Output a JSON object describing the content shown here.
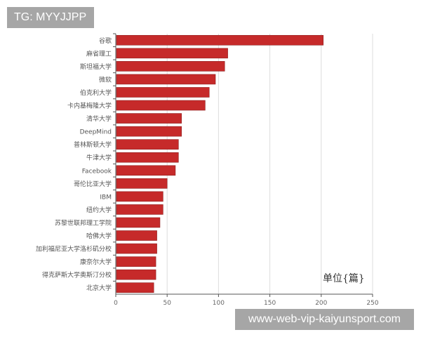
{
  "watermarks": {
    "top_left": "TG: MYYJJPP",
    "bottom_right": "www-web-vip-kaiyunsport.com"
  },
  "chart_data": {
    "type": "bar",
    "orientation": "horizontal",
    "title": "",
    "xlabel": "",
    "ylabel": "",
    "unit_label": "单位{篇}",
    "xlim": [
      0,
      250
    ],
    "xticks": [
      0,
      50,
      100,
      150,
      200,
      250
    ],
    "grid": true,
    "bar_color": "#c62a2a",
    "categories": [
      "谷歌",
      "麻省理工",
      "斯坦福大学",
      "微软",
      "伯克利大学",
      "卡内基梅隆大学",
      "清华大学",
      "DeepMind",
      "普林斯顿大学",
      "牛津大学",
      "Facebook",
      "哥伦比亚大学",
      "IBM",
      "纽约大学",
      "苏黎世联邦理工学院",
      "哈佛大学",
      "加利福尼亚大学洛杉矶分校",
      "康奈尔大学",
      "得克萨斯大学奥斯汀分校",
      "北京大学"
    ],
    "values": [
      202,
      109,
      106,
      97,
      91,
      87,
      64,
      64,
      61,
      61,
      58,
      50,
      46,
      46,
      43,
      40,
      40,
      39,
      39,
      37
    ]
  }
}
